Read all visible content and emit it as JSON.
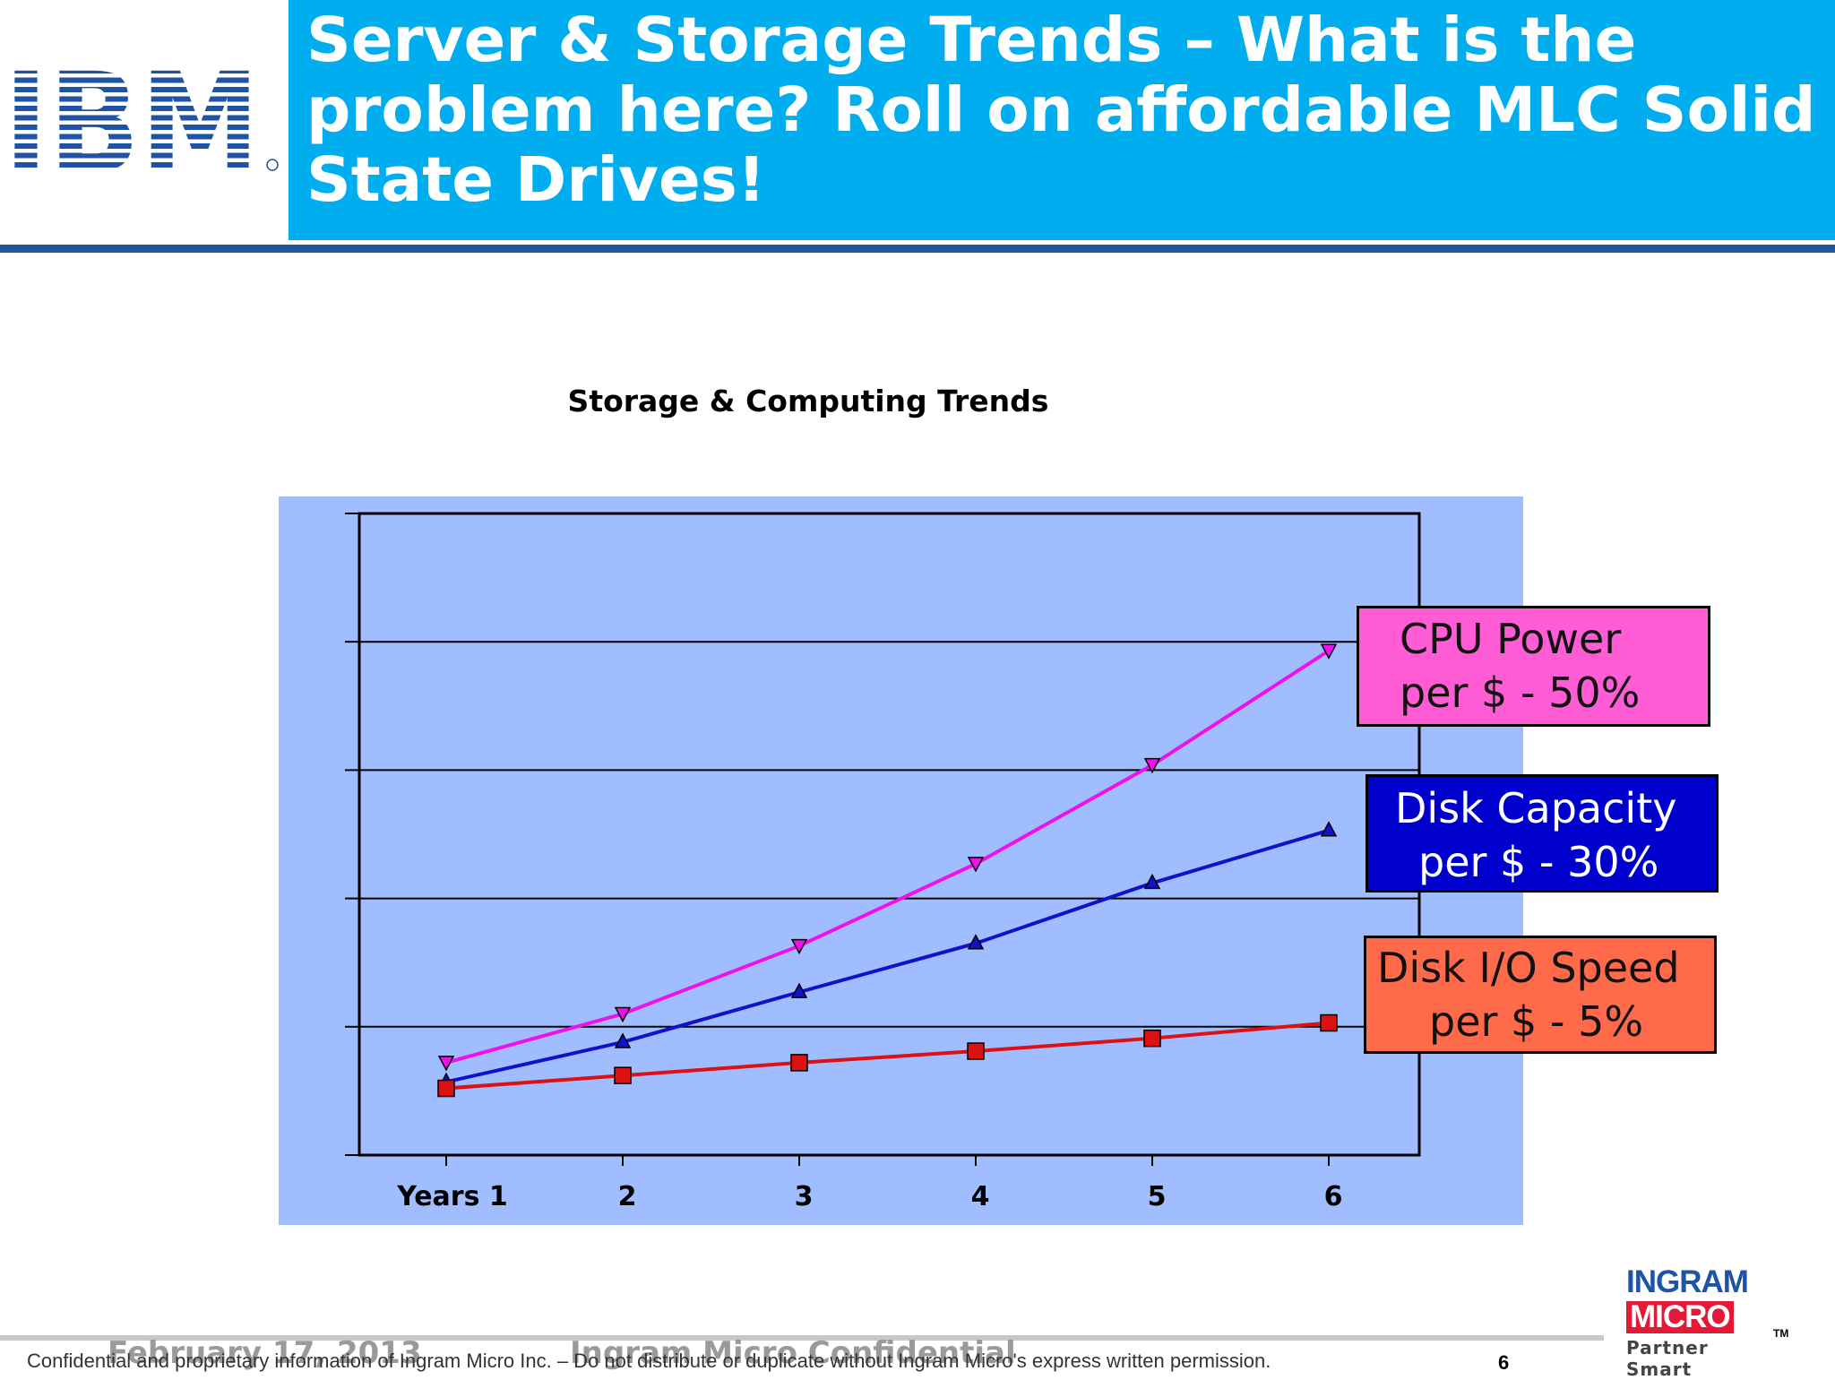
{
  "header": {
    "logo_text": "IBM",
    "title": "Server & Storage Trends – What is the problem here? Roll on affordable MLC Solid State Drives!"
  },
  "colors": {
    "title_bar": "#00ADEF",
    "header_rule": "#1F53A3",
    "plot_background": "#A0BEFF",
    "cpu_series": "#EE11EE",
    "disk_capacity_series": "#1111CC",
    "disk_io_series": "#DD1111",
    "cpu_label_bg": "#FF5CD6",
    "disk_capacity_label_bg": "#0000CC",
    "disk_io_label_bg": "#FF6A4A"
  },
  "chart_data": {
    "type": "line",
    "title": "Storage & Computing Trends",
    "categories": [
      "Years 1",
      "2",
      "3",
      "4",
      "5",
      "6"
    ],
    "ylim": [
      0,
      5
    ],
    "y_tick_labels": "none",
    "grid": true,
    "legend": "right, callout boxes",
    "series": [
      {
        "name": "CPU Power per $ - 50%",
        "label_lines": [
          "CPU Power",
          "per $ - 50%"
        ],
        "marker": "triangle-down",
        "values": [
          0.72,
          1.1,
          1.63,
          2.27,
          3.04,
          3.93
        ]
      },
      {
        "name": "Disk Capacity per $ - 30%",
        "label_lines": [
          "Disk Capacity",
          "per $ - 30%"
        ],
        "marker": "triangle-up",
        "values": [
          0.57,
          0.88,
          1.27,
          1.65,
          2.12,
          2.53
        ]
      },
      {
        "name": "Disk I/O Speed per $ - 5%",
        "label_lines": [
          "Disk I/O Speed",
          "per $ - 5%"
        ],
        "marker": "square",
        "values": [
          0.52,
          0.62,
          0.72,
          0.81,
          0.91,
          1.03
        ]
      }
    ]
  },
  "footer": {
    "date": "February 17, 2013",
    "confidential": "Ingram Micro Confidential",
    "disclaimer": "Confidential and proprietary information of Ingram Micro Inc. – Do not distribute or duplicate without Ingram Micro's express written permission.",
    "page_number": "6",
    "partner_logo": {
      "line1": "INGRAM",
      "line2": "MICRO",
      "trademark": "TM",
      "tagline": "Partner Smart"
    }
  }
}
